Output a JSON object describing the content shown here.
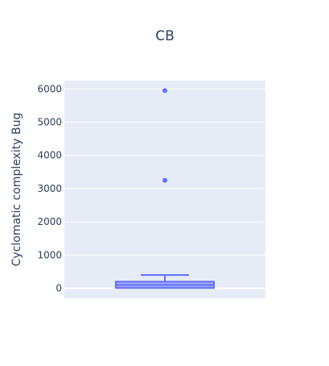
{
  "chart_data": {
    "type": "box",
    "title": "CB",
    "xlabel": "",
    "ylabel": "Cyclomatic complexity Bug",
    "ylim": [
      -300,
      6250
    ],
    "yticks": [
      0,
      1000,
      2000,
      3000,
      4000,
      5000,
      6000
    ],
    "ytick_labels": [
      "0",
      "1000",
      "2000",
      "3000",
      "4000",
      "5000",
      "6000"
    ],
    "grid": true,
    "legend": "none",
    "box": {
      "min": 0,
      "q1": 10,
      "median": 100,
      "q3": 200,
      "upper_whisker": 400,
      "outliers": [
        3250,
        5950
      ]
    },
    "colors": {
      "plot_bg": "#e5ecf6",
      "grid": "#ffffff",
      "box_line": "#636efa",
      "box_fill": "rgba(99,110,250,0.5)",
      "text": "#2a3f5f"
    }
  }
}
